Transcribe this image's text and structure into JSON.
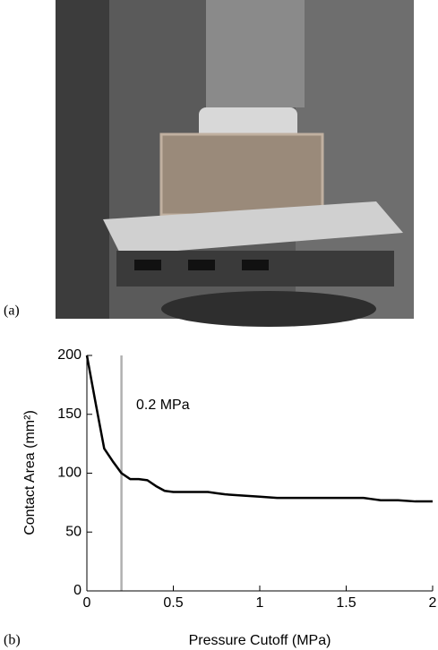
{
  "panel_a_label": "(a)",
  "chart_data": {
    "type": "line",
    "panel_label": "(b)",
    "x_label": "Pressure Cutoff (MPa)",
    "y_label": "Contact Area (mm²)",
    "annotation": "0.2 MPa",
    "cutoff_line": 0.2,
    "cutoff_color": "#b0b0b0",
    "x": [
      0,
      0.05,
      0.1,
      0.15,
      0.2,
      0.25,
      0.3,
      0.35,
      0.4,
      0.45,
      0.5,
      0.6,
      0.7,
      0.75,
      0.8,
      0.9,
      1.0,
      1.1,
      1.2,
      1.3,
      1.4,
      1.5,
      1.6,
      1.65,
      1.7,
      1.8,
      1.9,
      2.0
    ],
    "series": [
      {
        "color": "#000000",
        "values": [
          200,
          160,
          121,
          110,
          100,
          95,
          95,
          94,
          89,
          85,
          84,
          84,
          84,
          83,
          82,
          81,
          80,
          79,
          79,
          79,
          79,
          79,
          79,
          78,
          77,
          77,
          76,
          76
        ]
      }
    ],
    "xlim": [
      0,
      2
    ],
    "xticks": [
      0,
      0.5,
      1,
      1.5,
      2
    ],
    "ylim": [
      0,
      200
    ],
    "yticks": [
      0,
      50,
      100,
      150,
      200
    ]
  }
}
